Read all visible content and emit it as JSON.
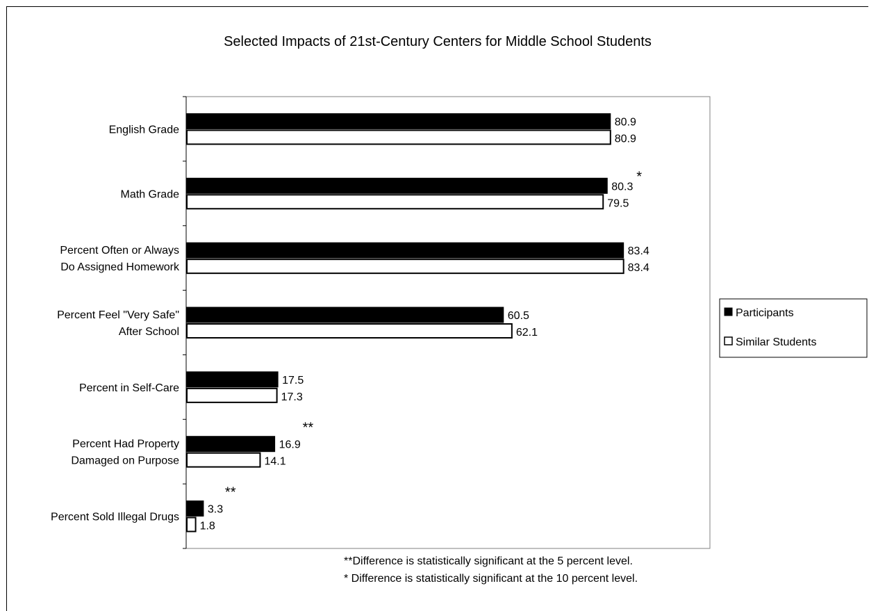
{
  "chart_data": {
    "type": "bar",
    "orientation": "horizontal",
    "title": "Selected Impacts of 21st-Century Centers for Middle School Students",
    "categories": [
      [
        "English Grade"
      ],
      [
        "Math Grade"
      ],
      [
        "Percent Often or Always",
        "Do Assigned Homework"
      ],
      [
        "Percent Feel \"Very Safe\"",
        "After School"
      ],
      [
        "Percent in Self-Care"
      ],
      [
        "Percent Had Property",
        "Damaged on Purpose"
      ],
      [
        "Percent Sold Illegal Drugs"
      ]
    ],
    "series": [
      {
        "name": "Participants",
        "color": "#000000",
        "values": [
          80.9,
          80.3,
          83.4,
          60.5,
          17.5,
          16.9,
          3.3
        ],
        "labels": [
          "80.9",
          "80.3",
          "83.4",
          "60.5",
          "17.5",
          "16.9",
          "3.3"
        ],
        "markers": [
          "",
          "*",
          "",
          "",
          "",
          "**",
          "**"
        ]
      },
      {
        "name": "Similar Students",
        "color": "#ffffff",
        "values": [
          80.9,
          79.5,
          83.4,
          62.1,
          17.3,
          14.1,
          1.8
        ],
        "labels": [
          "80.9",
          "79.5",
          "83.4",
          "62.1",
          "17.3",
          "14.1",
          "1.8"
        ],
        "markers": [
          "",
          "",
          "",
          "",
          "",
          "",
          ""
        ]
      }
    ],
    "xlim": [
      0,
      100
    ],
    "grid": false,
    "legend_position": "right"
  },
  "footnotes": [
    "**Difference is statistically significant at the 5 percent level.",
    "* Difference is statistically significant at the 10 percent level."
  ]
}
